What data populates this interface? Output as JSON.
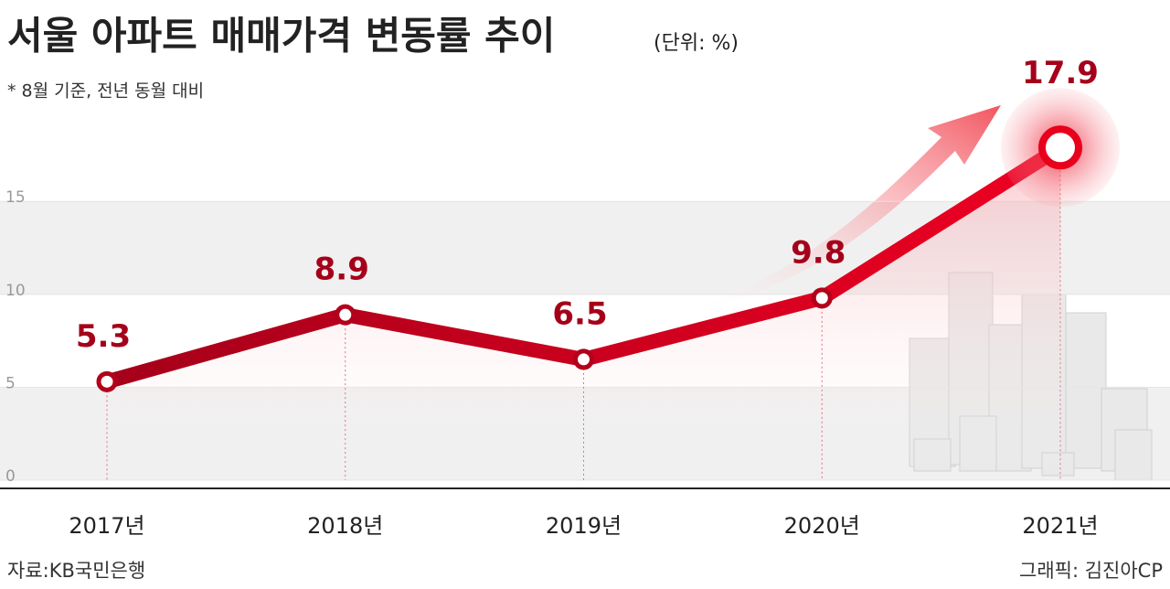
{
  "chart_data": {
    "type": "line",
    "title": "서울 아파트 매매가격 변동률 추이",
    "subtitle": "(단위: %)",
    "note": "* 8월 기준, 전년 동월 대비",
    "source": "자료:KB국민은행",
    "credit": "그래픽: 김진아CP",
    "categories": [
      "2017년",
      "2018년",
      "2019년",
      "2020년",
      "2021년"
    ],
    "series": [
      {
        "name": "서울 아파트 매매가격 변동률",
        "color": "#d9001b",
        "values": [
          5.3,
          8.9,
          6.5,
          9.8,
          17.9
        ]
      }
    ],
    "ylim": [
      0,
      22
    ],
    "yticks": [
      0,
      5,
      10,
      15
    ],
    "grid": true
  }
}
